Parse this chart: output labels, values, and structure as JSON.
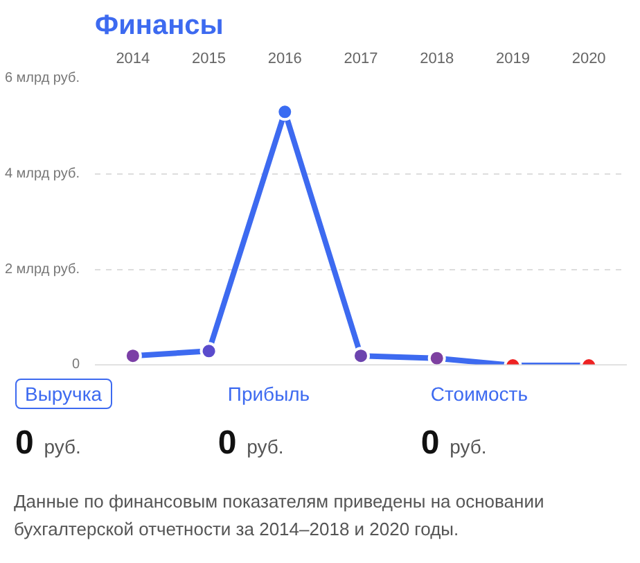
{
  "chart_data": {
    "type": "line",
    "title": "Финансы",
    "categories": [
      "2014",
      "2015",
      "2016",
      "2017",
      "2018",
      "2019",
      "2020"
    ],
    "series": [
      {
        "color": "#3d6af0",
        "colors": [
          "#7b3fa6",
          "#5a4bcc",
          "#3a6cf2",
          "#6c44ae",
          "#7d40a0",
          "#ee2222",
          "#ee2222"
        ],
        "values": [
          0.2,
          0.3,
          5.3,
          0.2,
          0.15,
          0,
          0
        ]
      }
    ],
    "ylim": [
      0,
      6
    ],
    "yticks": [
      {
        "value": 0,
        "label": "0"
      },
      {
        "value": 2,
        "label": "2 млрд руб."
      },
      {
        "value": 4,
        "label": "4 млрд руб."
      },
      {
        "value": 6,
        "label": "6 млрд руб."
      }
    ],
    "ref_lines": [
      {
        "axis": "y",
        "value": 0,
        "color": "#d8d8d8",
        "line_style": "solid"
      }
    ],
    "grid": "y",
    "marker": "circle",
    "line_style": "solid",
    "annotations": [
      "Выручка",
      "Прибыль",
      "Стоимость",
      "0 руб.",
      "0 руб.",
      "0 руб.",
      "Данные по финансовым показателям приведены на основании бухгалтерской отчетности за 2014–2018 и 2020 годы."
    ]
  }
}
